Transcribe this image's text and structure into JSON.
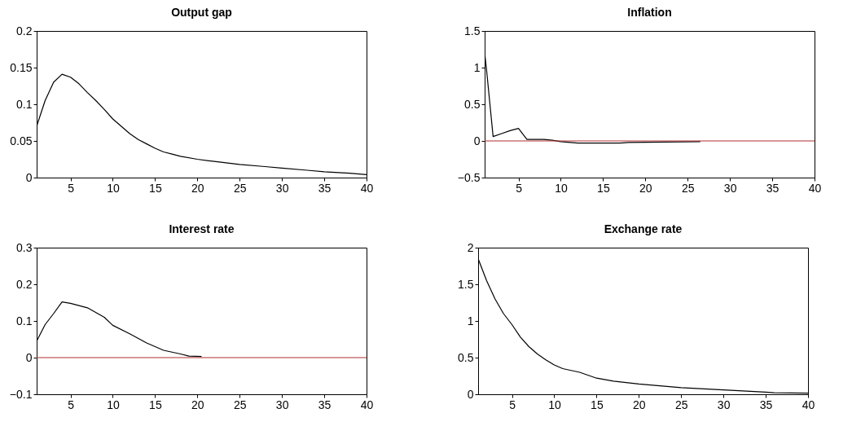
{
  "chart_data": [
    {
      "type": "line",
      "title": "Output gap",
      "x": [
        1,
        2,
        3,
        4,
        5,
        6,
        7,
        8,
        9,
        10,
        11,
        12,
        13,
        14,
        15,
        16,
        17,
        18,
        20,
        22,
        25,
        28,
        30,
        33,
        35,
        38,
        40
      ],
      "series": [
        {
          "color": "#000000",
          "values": [
            0.07,
            0.105,
            0.13,
            0.141,
            0.137,
            0.128,
            0.116,
            0.105,
            0.093,
            0.08,
            0.07,
            0.06,
            0.052,
            0.046,
            0.04,
            0.035,
            0.032,
            0.029,
            0.025,
            0.022,
            0.018,
            0.015,
            0.013,
            0.01,
            0.008,
            0.006,
            0.004
          ]
        }
      ],
      "xlim": [
        1,
        40
      ],
      "xticks": [
        5,
        10,
        15,
        20,
        25,
        30,
        35,
        40
      ],
      "ylim": [
        0,
        0.2
      ],
      "yticks": [
        0,
        0.05,
        0.1,
        0.15,
        0.2
      ],
      "grid": false
    },
    {
      "type": "line",
      "title": "Inflation",
      "x": [
        1,
        1.2,
        2,
        3,
        4,
        5,
        6,
        8,
        9,
        10,
        12,
        17,
        18,
        26.5
      ],
      "series": [
        {
          "color": "#000000",
          "values": [
            1.2,
            1.0,
            0.06,
            0.1,
            0.14,
            0.17,
            0.02,
            0.02,
            0.01,
            -0.01,
            -0.03,
            -0.03,
            -0.02,
            -0.01
          ]
        }
      ],
      "xlim": [
        1,
        40
      ],
      "xticks": [
        5,
        10,
        15,
        20,
        25,
        30,
        35,
        40
      ],
      "ylim": [
        -0.5,
        1.5
      ],
      "yticks": [
        -0.5,
        0,
        0.5,
        1,
        1.5
      ],
      "grid": false,
      "ref_lines": [
        {
          "axis": "y",
          "value": 0,
          "color": "#b03030"
        }
      ]
    },
    {
      "type": "line",
      "title": "Interest rate",
      "x": [
        1,
        2,
        3,
        4,
        5,
        7,
        9,
        10,
        12,
        14,
        16,
        18,
        19,
        20.5
      ],
      "series": [
        {
          "color": "#000000",
          "values": [
            0.045,
            0.09,
            0.12,
            0.152,
            0.148,
            0.136,
            0.11,
            0.088,
            0.065,
            0.04,
            0.02,
            0.01,
            0.004,
            0.003
          ]
        }
      ],
      "xlim": [
        1,
        40
      ],
      "xticks": [
        5,
        10,
        15,
        20,
        25,
        30,
        35,
        40
      ],
      "ylim": [
        -0.1,
        0.3
      ],
      "yticks": [
        -0.1,
        0,
        0.1,
        0.2,
        0.3
      ],
      "grid": false,
      "ref_lines": [
        {
          "axis": "y",
          "value": 0,
          "color": "#b03030"
        }
      ]
    },
    {
      "type": "line",
      "title": "Exchange rate",
      "x": [
        1,
        2,
        3,
        4,
        5,
        6,
        7,
        8,
        9,
        10,
        11,
        13,
        15,
        17,
        20,
        25,
        30,
        35,
        36,
        40
      ],
      "series": [
        {
          "color": "#000000",
          "values": [
            1.85,
            1.55,
            1.3,
            1.1,
            0.95,
            0.78,
            0.65,
            0.55,
            0.47,
            0.4,
            0.35,
            0.3,
            0.22,
            0.18,
            0.14,
            0.09,
            0.06,
            0.03,
            0.02,
            0.015
          ]
        }
      ],
      "xlim": [
        1,
        40
      ],
      "xticks": [
        5,
        10,
        15,
        20,
        25,
        30,
        35,
        40
      ],
      "ylim": [
        0,
        2
      ],
      "yticks": [
        0,
        0.5,
        1,
        1.5,
        2
      ],
      "grid": false
    }
  ]
}
